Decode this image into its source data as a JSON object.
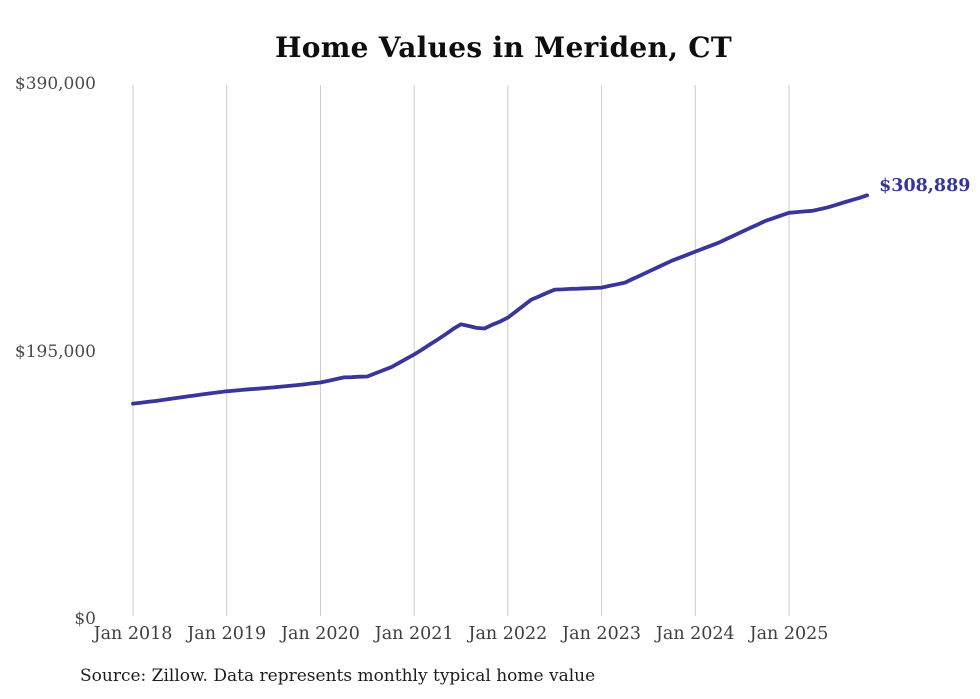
{
  "title": "Home Values in Meriden, CT",
  "source_note": "Source: Zillow. Data represents monthly typical home value",
  "colors": {
    "line": "#38369a",
    "grid": "#cbcbcb",
    "end_label_text": "#34349c",
    "axis_text": "#4a4a4a",
    "title_text": "#0e0e0e",
    "background": "#ffffff"
  },
  "chart_data": {
    "type": "line",
    "title": "Home Values in Meriden, CT",
    "xlabel": "",
    "ylabel": "",
    "ylim": [
      0,
      390000
    ],
    "grid": "vertical-only",
    "legend": "none",
    "final_value": 308889,
    "final_value_label": "$308,889",
    "y_ticks": [
      {
        "label": "$390,000",
        "value": 390000
      },
      {
        "label": "$195,000",
        "value": 195000
      },
      {
        "label": "$0",
        "value": 0
      }
    ],
    "x_ticks": [
      {
        "label": "Jan 2018",
        "month_index": 0
      },
      {
        "label": "Jan 2019",
        "month_index": 12
      },
      {
        "label": "Jan 2020",
        "month_index": 24
      },
      {
        "label": "Jan 2021",
        "month_index": 36
      },
      {
        "label": "Jan 2022",
        "month_index": 48
      },
      {
        "label": "Jan 2023",
        "month_index": 60
      },
      {
        "label": "Jan 2024",
        "month_index": 72
      },
      {
        "label": "Jan 2025",
        "month_index": 84
      }
    ],
    "series": [
      {
        "name": "Typical home value",
        "months": [
          "2018-01",
          "2018-02",
          "2018-03",
          "2018-04",
          "2018-05",
          "2018-06",
          "2018-07",
          "2018-08",
          "2018-09",
          "2018-10",
          "2018-11",
          "2018-12",
          "2019-01",
          "2019-02",
          "2019-03",
          "2019-04",
          "2019-05",
          "2019-06",
          "2019-07",
          "2019-08",
          "2019-09",
          "2019-10",
          "2019-11",
          "2019-12",
          "2020-01",
          "2020-02",
          "2020-03",
          "2020-04",
          "2020-05",
          "2020-06",
          "2020-07",
          "2020-08",
          "2020-09",
          "2020-10",
          "2020-11",
          "2020-12",
          "2021-01",
          "2021-02",
          "2021-03",
          "2021-04",
          "2021-05",
          "2021-06",
          "2021-07",
          "2021-08",
          "2021-09",
          "2021-10",
          "2021-11",
          "2021-12",
          "2022-01",
          "2022-02",
          "2022-03",
          "2022-04",
          "2022-05",
          "2022-06",
          "2022-07",
          "2022-08",
          "2022-09",
          "2022-10",
          "2022-11",
          "2022-12",
          "2023-01",
          "2023-02",
          "2023-03",
          "2023-04",
          "2023-05",
          "2023-06",
          "2023-07",
          "2023-08",
          "2023-09",
          "2023-10",
          "2023-11",
          "2023-12",
          "2024-01",
          "2024-02",
          "2024-03",
          "2024-04",
          "2024-05",
          "2024-06",
          "2024-07",
          "2024-08",
          "2024-09",
          "2024-10",
          "2024-11",
          "2024-12",
          "2025-01",
          "2025-02",
          "2025-03",
          "2025-04",
          "2025-05",
          "2025-06",
          "2025-07",
          "2025-08",
          "2025-09",
          "2025-10",
          "2025-11"
        ],
        "values": [
          157000,
          157700,
          158300,
          159000,
          159800,
          160700,
          161500,
          162300,
          163000,
          163800,
          164500,
          165300,
          166000,
          166500,
          167000,
          167500,
          167900,
          168400,
          168800,
          169400,
          169900,
          170500,
          171100,
          171800,
          172400,
          173600,
          174900,
          176100,
          176300,
          176600,
          176800,
          179000,
          181200,
          183400,
          186500,
          189700,
          192800,
          196400,
          200100,
          203700,
          207500,
          211500,
          214800,
          213600,
          212200,
          211800,
          214500,
          216800,
          219700,
          224100,
          228400,
          232800,
          235200,
          237700,
          240100,
          240300,
          240600,
          240800,
          241100,
          241300,
          241600,
          242800,
          244000,
          245200,
          247900,
          250500,
          253200,
          255900,
          258500,
          261200,
          263400,
          265600,
          267800,
          270000,
          272100,
          274300,
          277000,
          279600,
          282300,
          285000,
          287600,
          290300,
          292200,
          294200,
          296100,
          296600,
          297100,
          297600,
          298800,
          300100,
          301900,
          303600,
          305300,
          307000,
          308889
        ]
      }
    ]
  }
}
